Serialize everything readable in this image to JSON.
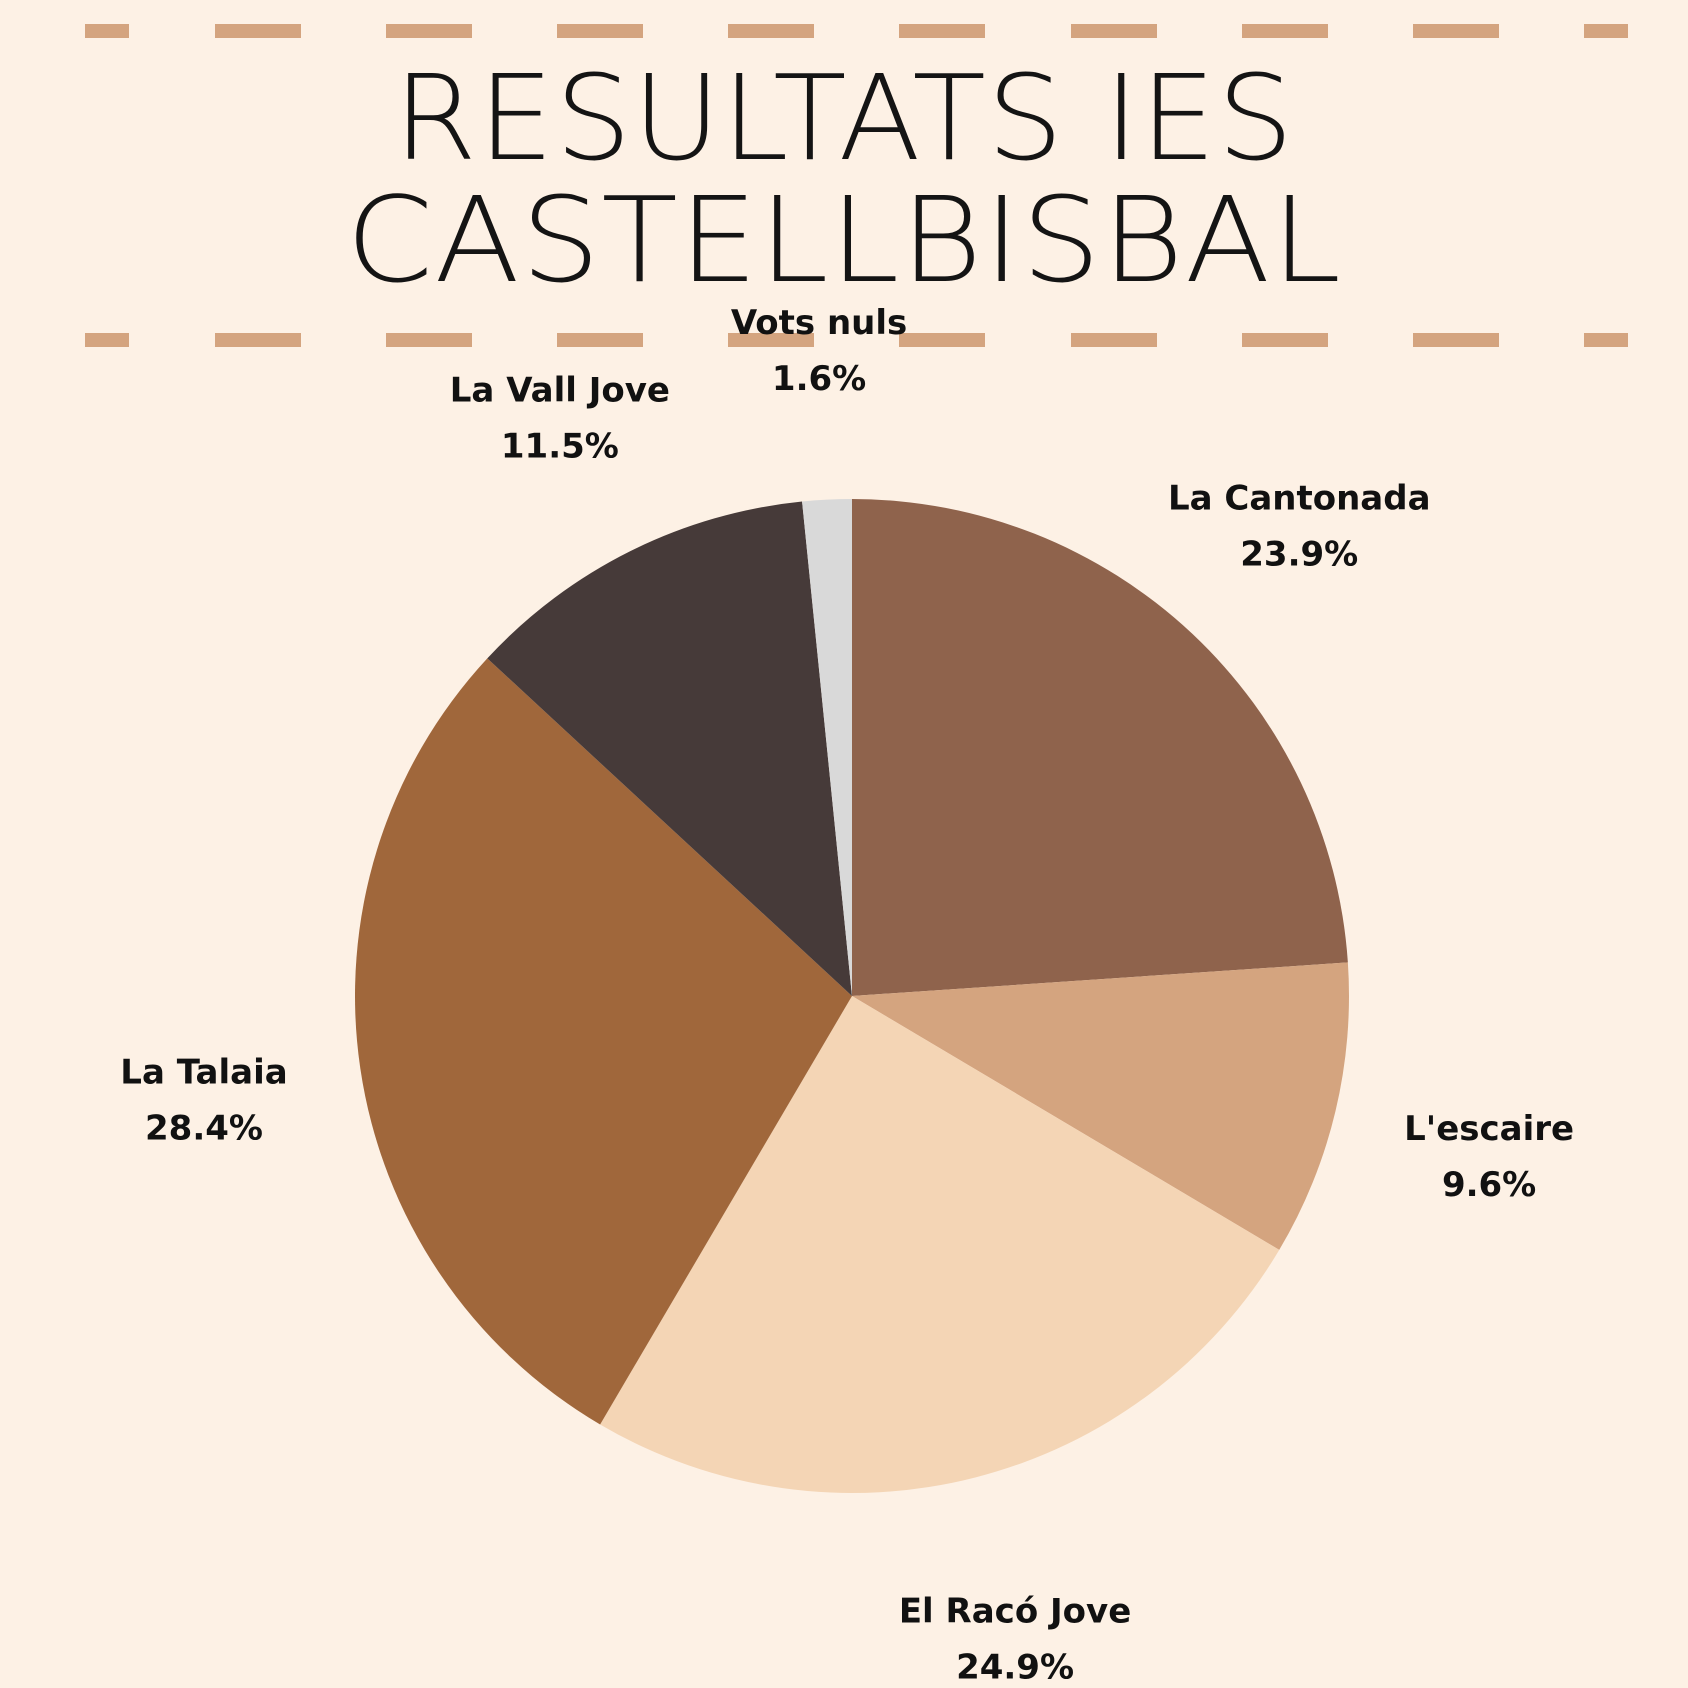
{
  "title": {
    "line1": "RESULTATS IES",
    "line2": "CASTELLBISBAL"
  },
  "colors": {
    "background": "#fdf1e5",
    "dashes": "#d4a47f"
  },
  "chart_data": {
    "type": "pie",
    "title": "RESULTATS IES CASTELLBISBAL",
    "start": "12 o'clock",
    "direction": "clockwise",
    "labels_shown": "name and percentage outside each slice",
    "slices": [
      {
        "name": "La Cantonada",
        "value": 23.9,
        "label": "23.9%",
        "color": "#8f634c"
      },
      {
        "name": "L'escaire",
        "value": 9.6,
        "label": "9.6%",
        "color": "#d4a47f"
      },
      {
        "name": "El Racó Jove",
        "value": 24.9,
        "label": "24.9%",
        "color": "#f4d5b5"
      },
      {
        "name": "La Talaia",
        "value": 28.4,
        "label": "28.4%",
        "color": "#a0673b"
      },
      {
        "name": "La Vall Jove",
        "value": 11.5,
        "label": "11.5%",
        "color": "#463a39"
      },
      {
        "name": "Vots nuls",
        "value": 1.6,
        "label": "1.6%",
        "color": "#d9d9d9"
      }
    ]
  }
}
